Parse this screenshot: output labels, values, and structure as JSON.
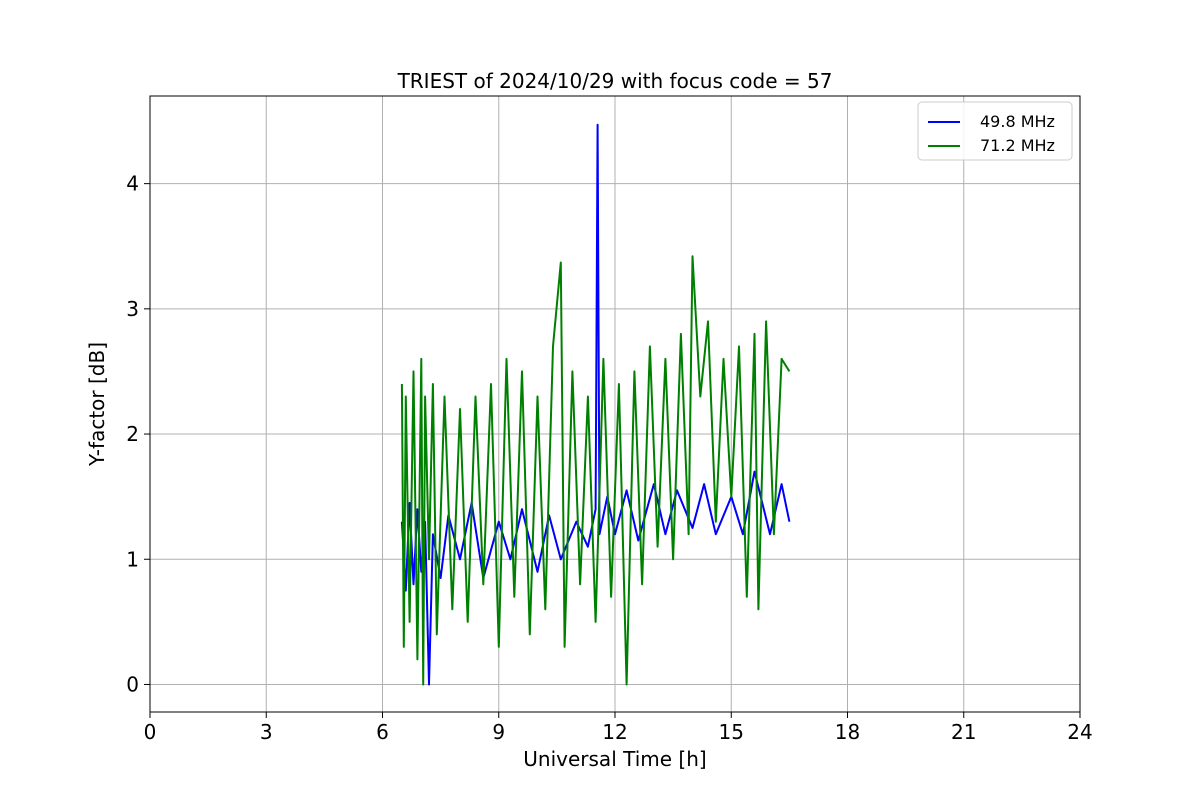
{
  "chart_data": {
    "type": "line",
    "title": "TRIEST of 2024/10/29 with focus code = 57",
    "xlabel": "Universal Time [h]",
    "ylabel": "Y-factor [dB]",
    "xlim": [
      0,
      24
    ],
    "ylim": [
      -0.22,
      4.7
    ],
    "xticks": [
      0,
      3,
      6,
      9,
      12,
      15,
      18,
      21,
      24
    ],
    "yticks": [
      0,
      1,
      2,
      3,
      4
    ],
    "grid": true,
    "legend_position": "top-right",
    "series": [
      {
        "name": "49.8 MHz",
        "color": "#0000ff",
        "x": [
          6.5,
          6.6,
          6.7,
          6.8,
          6.9,
          7.0,
          7.1,
          7.2,
          7.3,
          7.5,
          7.7,
          8.0,
          8.3,
          8.6,
          9.0,
          9.3,
          9.6,
          10.0,
          10.3,
          10.6,
          11.0,
          11.3,
          11.5,
          11.55,
          11.6,
          11.8,
          12.0,
          12.3,
          12.6,
          13.0,
          13.3,
          13.6,
          14.0,
          14.3,
          14.6,
          15.0,
          15.3,
          15.6,
          16.0,
          16.3,
          16.5
        ],
        "y": [
          1.3,
          0.75,
          1.45,
          0.8,
          1.4,
          0.9,
          1.3,
          0.0,
          1.2,
          0.85,
          1.35,
          1.0,
          1.45,
          0.85,
          1.3,
          1.0,
          1.4,
          0.9,
          1.35,
          1.0,
          1.3,
          1.1,
          1.4,
          4.47,
          1.2,
          1.5,
          1.2,
          1.55,
          1.15,
          1.6,
          1.2,
          1.55,
          1.25,
          1.6,
          1.2,
          1.5,
          1.2,
          1.7,
          1.2,
          1.6,
          1.3
        ]
      },
      {
        "name": "71.2 MHz",
        "color": "#008000",
        "x": [
          6.5,
          6.55,
          6.6,
          6.7,
          6.8,
          6.9,
          7.0,
          7.05,
          7.1,
          7.2,
          7.3,
          7.4,
          7.6,
          7.8,
          8.0,
          8.2,
          8.4,
          8.6,
          8.8,
          9.0,
          9.2,
          9.4,
          9.6,
          9.8,
          10.0,
          10.2,
          10.4,
          10.6,
          10.7,
          10.9,
          11.1,
          11.3,
          11.5,
          11.7,
          11.9,
          12.1,
          12.3,
          12.5,
          12.7,
          12.9,
          13.1,
          13.3,
          13.5,
          13.7,
          13.9,
          14.0,
          14.2,
          14.4,
          14.6,
          14.8,
          15.0,
          15.2,
          15.4,
          15.6,
          15.7,
          15.9,
          16.1,
          16.3,
          16.5
        ],
        "y": [
          2.4,
          0.3,
          2.3,
          0.5,
          2.5,
          0.2,
          2.6,
          0.0,
          2.3,
          1.0,
          2.4,
          0.4,
          2.3,
          0.6,
          2.2,
          0.5,
          2.3,
          0.8,
          2.4,
          0.3,
          2.6,
          0.7,
          2.5,
          0.4,
          2.3,
          0.6,
          2.7,
          3.37,
          0.3,
          2.5,
          0.8,
          2.3,
          0.5,
          2.6,
          0.7,
          2.4,
          0.0,
          2.5,
          0.8,
          2.7,
          1.1,
          2.6,
          1.0,
          2.8,
          1.2,
          3.42,
          2.3,
          2.9,
          1.3,
          2.6,
          1.5,
          2.7,
          0.7,
          2.8,
          0.6,
          2.9,
          1.2,
          2.6,
          2.5
        ]
      }
    ]
  }
}
